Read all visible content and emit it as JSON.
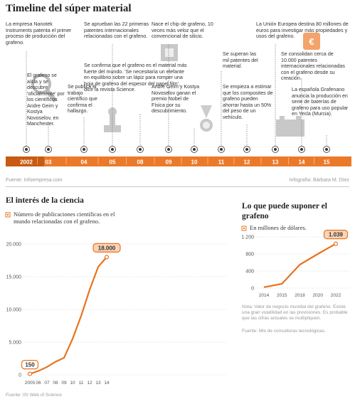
{
  "title": "Timeline del súper material",
  "timeline": {
    "years": [
      "2002",
      "03",
      "04",
      "05",
      "08",
      "09",
      "10",
      "11",
      "12",
      "13",
      "14",
      "15"
    ],
    "events": [
      "La empresa Nanotek Instruments patenta el primer proceso de producción del grafeno.",
      "El grafeno se aísla y se descubre 'oficialmente' por los científicos Andre Geim y Kostya Novoselov, en Manchester.",
      "Se publica el trabajo científico que confirma el hallazgo.",
      "Se aprueban las 22 primeras patentes internacionales relacionadas con el grafeno.",
      "Se confirma que el grafeno es el material más fuerte del mundo. 'Se necesitaría un elefante en equilibrio sobre un lápiz para romper una hoja de grafeno del espesor del papel film', dice la revista Science.",
      "Nace el chip de grafeno, 10 veces más veloz que el convencional de silicio.",
      "Andre Geim y Kostya Novoselov ganan el premio Nobel de Física por su descubrimiento.",
      "Se superan las mil patentes del material.",
      "Se empieza a estimar que los composites de grafeno pueden ahorrar hasta un 50% del peso de un vehículo.",
      "La Unión Europea destina 80 millones de euros para investigar más propiedades y usos del grafeno.",
      "Se consolidan cerca de 10.000 patentes internacionales relacionadas con el grafeno desde su creación.",
      "La española Grafenano anuncia la producción en serie de baterías de grafeno para uso popular en Yecla (Murcia)."
    ],
    "source": "Fuente: Infoempresa.com",
    "credit": "Infografía: Bárbara M. Díez"
  },
  "chart_data": [
    {
      "type": "line",
      "title": "El interés de la ciencia",
      "categories": [
        "2005",
        "06",
        "07",
        "08",
        "09",
        "10",
        "11",
        "12",
        "13",
        "14"
      ],
      "series": [
        {
          "name": "Número de publicaciones científicas en el mundo relacionadas con el grafeno.",
          "color": "#e8731f",
          "values": [
            150,
            600,
            1200,
            2000,
            2600,
            5500,
            9000,
            13000,
            16500,
            18000
          ],
          "value_labels": [
            "150",
            null,
            null,
            null,
            null,
            null,
            null,
            null,
            null,
            "18.000"
          ]
        }
      ],
      "ylim": [
        0,
        20000
      ],
      "yticks": [
        0,
        {
          "value": 5000,
          "label": "5.000"
        },
        {
          "value": 10000,
          "label": "10.000"
        },
        {
          "value": 15000,
          "label": "15.000"
        },
        {
          "value": 20000,
          "label": "20.000"
        }
      ],
      "grid": true,
      "source": "Fuente: ISI Web of Science"
    },
    {
      "type": "line",
      "title": "Lo que puede suponer el grafeno",
      "categories": [
        "2014",
        "2015",
        "2018",
        "2020",
        "2022"
      ],
      "series": [
        {
          "name": "En millones de dólares.",
          "color": "#e8731f",
          "values": [
            20,
            100,
            550,
            800,
            1039
          ],
          "value_labels": [
            null,
            null,
            null,
            null,
            "1.039"
          ]
        }
      ],
      "ylim": [
        0,
        1200
      ],
      "yticks": [
        0,
        400,
        800,
        {
          "value": 1200,
          "label": "1.200"
        }
      ],
      "grid": true,
      "note": "Nota: Valor de negocio mundial del grafeno. Existe una gran volatilidad en las previsiones. Es probable que las cifras actuales se multipliquen.",
      "source": "Fuente: Mix de consultoras tecnológicas."
    }
  ]
}
